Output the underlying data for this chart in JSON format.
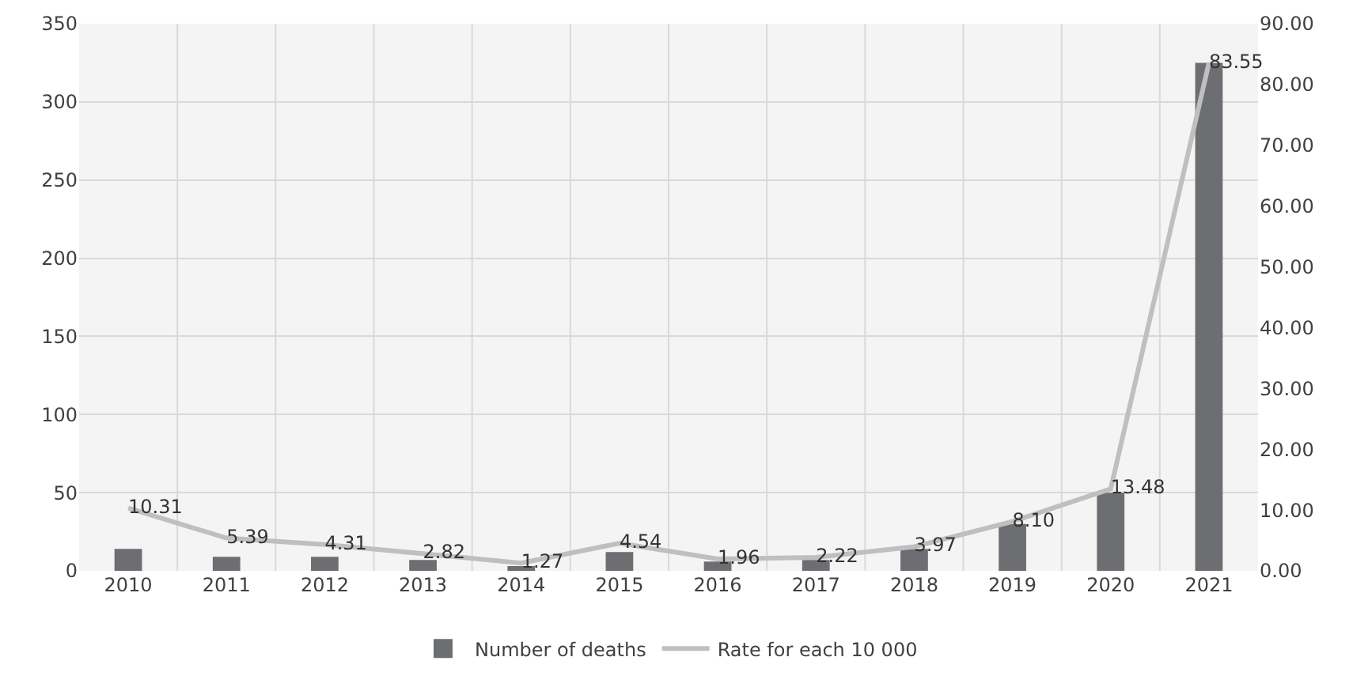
{
  "chart_data": {
    "type": "bar",
    "categories": [
      "2010",
      "2011",
      "2012",
      "2013",
      "2014",
      "2015",
      "2016",
      "2017",
      "2018",
      "2019",
      "2020",
      "2021"
    ],
    "series": [
      {
        "name": "Number of deaths",
        "color": "#6d6e71",
        "values": [
          14,
          9,
          9,
          7,
          3,
          12,
          6,
          7,
          14,
          30,
          50,
          325
        ]
      },
      {
        "name": "Rate for each 10 000",
        "type": "line",
        "axis": "y2",
        "color": "#bfbfbf",
        "values": [
          10.31,
          5.39,
          4.31,
          2.82,
          1.27,
          4.54,
          1.96,
          2.22,
          3.97,
          8.1,
          13.48,
          83.55
        ],
        "value_labels": [
          "10.31",
          "5.39",
          "4.31",
          "2.82",
          "1.27",
          "4.54",
          "1.96",
          "2.22",
          "3.97",
          "8.10",
          "13.48",
          "83.55"
        ]
      }
    ],
    "ylim": [
      0,
      350
    ],
    "yticks": [
      0,
      50,
      100,
      150,
      200,
      250,
      300,
      350
    ],
    "y2lim": [
      0,
      90
    ],
    "y2ticks": [
      {
        "value": 0,
        "label": "0.00"
      },
      {
        "value": 10,
        "label": "10.00"
      },
      {
        "value": 20,
        "label": "20.00"
      },
      {
        "value": 30,
        "label": "30.00"
      },
      {
        "value": 40,
        "label": "40.00"
      },
      {
        "value": 50,
        "label": "50.00"
      },
      {
        "value": 60,
        "label": "60.00"
      },
      {
        "value": 70,
        "label": "70.00"
      },
      {
        "value": 80,
        "label": "80.00"
      },
      {
        "value": 90,
        "label": "90.00"
      }
    ],
    "grid": true,
    "legend": "bottom",
    "marker": "none",
    "line_style": "solid"
  }
}
